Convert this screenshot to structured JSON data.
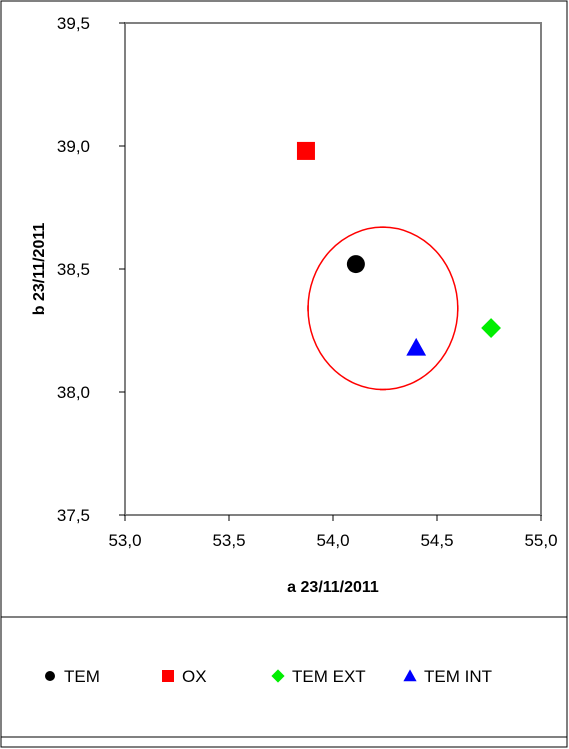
{
  "chart_data": {
    "type": "scatter",
    "xlabel": "a 23/11/2011",
    "ylabel": "b 23/11/2011",
    "xlim": [
      53.0,
      55.0
    ],
    "ylim": [
      37.5,
      39.5
    ],
    "x_ticks": [
      "53,0",
      "53,5",
      "54,0",
      "54,5",
      "55,0"
    ],
    "y_ticks": [
      "37,5",
      "38,0",
      "38,5",
      "39,0",
      "39,5"
    ],
    "grid": false,
    "legend_position": "bottom",
    "series": [
      {
        "name": "TEM",
        "marker": "circle",
        "color": "#000000",
        "points": [
          [
            54.11,
            38.52
          ]
        ]
      },
      {
        "name": "OX",
        "marker": "square",
        "color": "#ff0000",
        "points": [
          [
            53.87,
            38.98
          ]
        ]
      },
      {
        "name": "TEM EXT",
        "marker": "diamond",
        "color": "#00ee00",
        "points": [
          [
            54.76,
            38.26
          ]
        ]
      },
      {
        "name": "TEM INT",
        "marker": "triangle",
        "color": "#0000ff",
        "points": [
          [
            54.4,
            38.18
          ]
        ]
      }
    ],
    "ellipse": {
      "color": "#ff0000",
      "center": [
        54.24,
        38.34
      ],
      "radius_x": 0.36,
      "radius_y": 0.33
    }
  }
}
